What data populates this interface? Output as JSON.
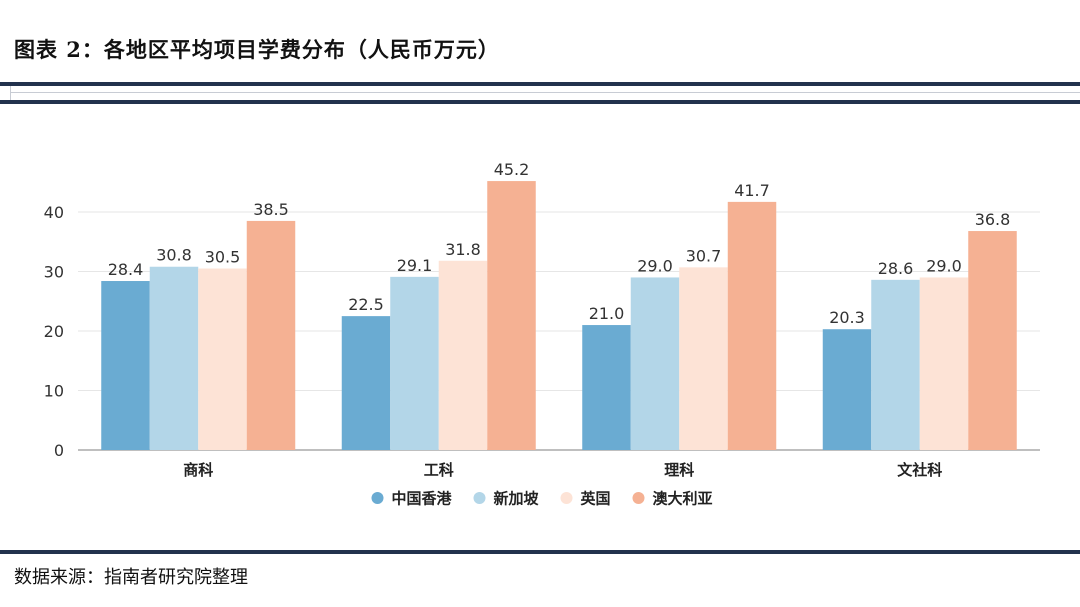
{
  "header": {
    "title": "图表 2：各地区平均项目学费分布（人民币万元）"
  },
  "footer": {
    "source": "数据来源：指南者研究院整理"
  },
  "colors": {
    "series": [
      "#6aabd2",
      "#b3d6e8",
      "#fde3d6",
      "#f5b193"
    ],
    "grid": "#e6e6e6",
    "axis": "#999999",
    "rule": "#22324d"
  },
  "chart_data": {
    "type": "bar",
    "title": "",
    "xlabel": "",
    "ylabel": "",
    "ylim": [
      0,
      50
    ],
    "yticks": [
      0,
      10,
      20,
      30,
      40
    ],
    "categories": [
      "商科",
      "工科",
      "理科",
      "文社科"
    ],
    "series": [
      {
        "name": "中国香港",
        "values": [
          28.4,
          22.5,
          21.0,
          20.3
        ]
      },
      {
        "name": "新加坡",
        "values": [
          30.8,
          29.1,
          29.0,
          28.6
        ]
      },
      {
        "name": "英国",
        "values": [
          30.5,
          31.8,
          30.7,
          29.0
        ]
      },
      {
        "name": "澳大利亚",
        "values": [
          38.5,
          45.2,
          41.7,
          36.8
        ]
      }
    ],
    "legend_position": "bottom"
  }
}
